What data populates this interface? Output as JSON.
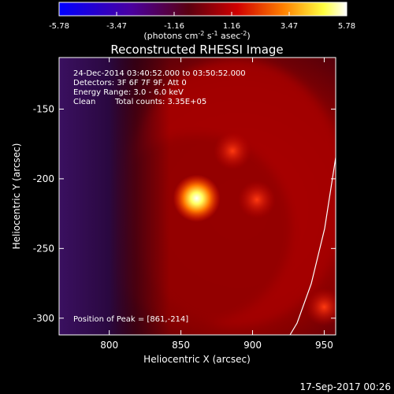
{
  "colorbar": {
    "ticks": [
      "-5.78",
      "-3.47",
      "-1.16",
      "1.16",
      "3.47",
      "5.78"
    ],
    "units_main": "(photons cm",
    "units_exp1": "-2",
    "units_mid": " s",
    "units_exp2": "-1",
    "units_tail": " asec",
    "units_exp3": "-2",
    "units_close": ")",
    "colors": [
      "#0000ff",
      "#000000",
      "#ff0000",
      "#ffff00",
      "#ffffff"
    ]
  },
  "chart_data": {
    "type": "heatmap",
    "title": "Reconstructed RHESSI Image",
    "xlabel": "Heliocentric X (arcsec)",
    "ylabel": "Heliocentric Y (arcsec)",
    "xlim": [
      765,
      958
    ],
    "ylim": [
      -312,
      -113
    ],
    "xticks": [
      800,
      850,
      900,
      950
    ],
    "yticks": [
      -150,
      -200,
      -250,
      -300
    ],
    "colorbar_range": [
      -5.78,
      5.78
    ],
    "sources": [
      {
        "x": 861,
        "y": -214,
        "peak": 5.78
      },
      {
        "x": 886,
        "y": -180,
        "peak": 2.2
      },
      {
        "x": 903,
        "y": -215,
        "peak": 1.7
      },
      {
        "x": 950,
        "y": -292,
        "peak": 1.5
      }
    ],
    "annotations": {
      "time": "24-Dec-2014 03:40:52.000 to 03:50:52.000",
      "detectors": "Detectors: 3F 6F 7F 9F, Att 0",
      "energy": "Energy Range: 3.0 - 6.0 keV",
      "clean": "Clean",
      "counts": "Total counts: 3.35E+05",
      "peak_position": "Position of Peak = [861,-214]"
    }
  },
  "footer": {
    "timestamp": "17-Sep-2017 00:26"
  }
}
